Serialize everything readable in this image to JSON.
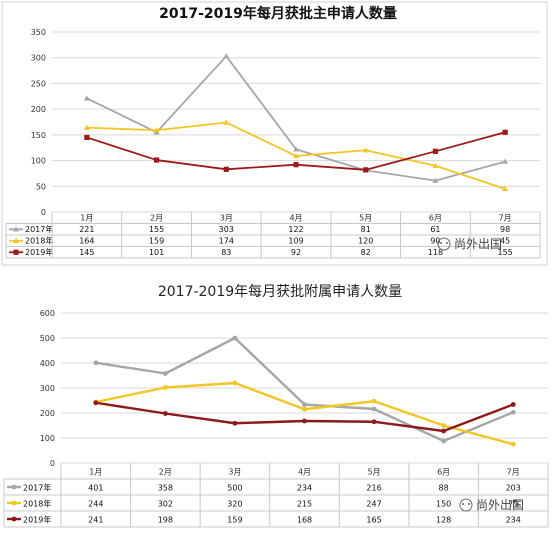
{
  "watermark": "尚外出国",
  "chart_data": [
    {
      "type": "line",
      "title": "2017-2019年每月获批主申请人数量",
      "categories": [
        "1月",
        "2月",
        "3月",
        "4月",
        "5月",
        "6月",
        "7月"
      ],
      "yticks": [
        "0",
        "50",
        "100",
        "150",
        "200",
        "250",
        "300",
        "350"
      ],
      "ylim": [
        0,
        350
      ],
      "grid": true,
      "legend": "table-bottom",
      "series": [
        {
          "name": "2017年",
          "color": "#a6a6a6",
          "marker": "triangle",
          "values": [
            221,
            155,
            303,
            122,
            81,
            61,
            98
          ]
        },
        {
          "name": "2018年",
          "color": "#f2c624",
          "marker": "triangle",
          "values": [
            164,
            159,
            174,
            109,
            120,
            90,
            45
          ]
        },
        {
          "name": "2019年",
          "color": "#9e1a1a",
          "marker": "square",
          "values": [
            145,
            101,
            83,
            92,
            82,
            118,
            155
          ]
        }
      ],
      "table": [
        [
          "221",
          "155",
          "303",
          "122",
          "81",
          "61",
          "98"
        ],
        [
          "164",
          "159",
          "174",
          "109",
          "120",
          "90",
          "45"
        ],
        [
          "145",
          "101",
          "83",
          "92",
          "82",
          "118",
          "155"
        ]
      ]
    },
    {
      "type": "line",
      "title": "2017-2019年每月获批附属申请人数量",
      "categories": [
        "1月",
        "2月",
        "3月",
        "4月",
        "5月",
        "6月",
        "7月"
      ],
      "yticks": [
        "0",
        "100",
        "200",
        "300",
        "400",
        "500",
        "600"
      ],
      "ylim": [
        0,
        600
      ],
      "grid": true,
      "legend": "table-bottom",
      "series": [
        {
          "name": "2017年",
          "color": "#a6a6a6",
          "marker": "circle",
          "values": [
            401,
            358,
            500,
            234,
            216,
            88,
            203
          ]
        },
        {
          "name": "2018年",
          "color": "#f2c624",
          "marker": "circle",
          "values": [
            244,
            302,
            320,
            215,
            247,
            150,
            75
          ]
        },
        {
          "name": "2019年",
          "color": "#8b1a1a",
          "marker": "circle",
          "values": [
            241,
            198,
            159,
            168,
            165,
            128,
            234
          ]
        }
      ],
      "table": [
        [
          "401",
          "358",
          "500",
          "234",
          "216",
          "88",
          "203"
        ],
        [
          "244",
          "302",
          "320",
          "215",
          "247",
          "150",
          "75"
        ],
        [
          "241",
          "198",
          "159",
          "168",
          "165",
          "128",
          "234"
        ]
      ]
    }
  ]
}
